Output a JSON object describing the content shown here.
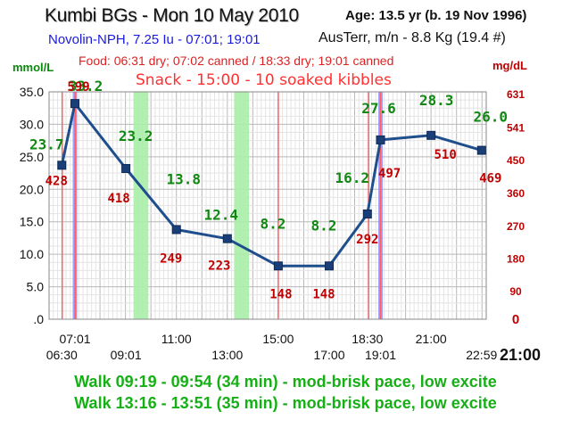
{
  "header": {
    "title": "Kumbi BGs - Mon 10 May 2010",
    "age": "Age: 13.5  yr (b. 19 Nov 1996)",
    "insulin": "Novolin-NPH, 7.25 Iu - 07:01; 19:01",
    "weight": "AusTerr, m/n - 8.8 Kg (19.4 #)",
    "food": "Food: 06:31 dry; 07:02 canned / 18:33 dry; 19:01 canned",
    "snack": "Snack - 15:00 - 10 soaked kibbles"
  },
  "footer": {
    "extra_time_label": "21:00",
    "walks": [
      "Walk 09:19 - 09:54 (34 min) - mod-brisk pace, low excite",
      "Walk 13:16 - 13:51 (35 min) - mod-brisk pace, low excite"
    ]
  },
  "chart_data": {
    "type": "line",
    "ylabel_left": "mmol/L",
    "ylabel_right": "mg/dL",
    "ylim": [
      0,
      35
    ],
    "x_range": [
      "06:00",
      "23:10"
    ],
    "y_ticks": [
      ".0",
      "5.0",
      "10.0",
      "15.0",
      "20.0",
      "25.0",
      "30.0",
      "35.0"
    ],
    "right_ticks": [
      {
        "label": "0",
        "y": 0
      },
      {
        "label": "90",
        "y": 4.4
      },
      {
        "label": "180",
        "y": 9.4
      },
      {
        "label": "270",
        "y": 14.4
      },
      {
        "label": "360",
        "y": 19.5
      },
      {
        "label": "450",
        "y": 24.6
      },
      {
        "label": "541",
        "y": 29.6
      },
      {
        "label": "631",
        "y": 34.7
      }
    ],
    "x_ticks": [
      {
        "time": "06:30",
        "label": "06:30",
        "row": 2
      },
      {
        "time": "07:01",
        "label": "07:01",
        "row": 1
      },
      {
        "time": "09:01",
        "label": "09:01",
        "row": 2
      },
      {
        "time": "11:00",
        "label": "11:00",
        "row": 1
      },
      {
        "time": "13:00",
        "label": "13:00",
        "row": 2
      },
      {
        "time": "15:00",
        "label": "15:00",
        "row": 1
      },
      {
        "time": "17:00",
        "label": "17:00",
        "row": 2
      },
      {
        "time": "18:30",
        "label": "18:30",
        "row": 1
      },
      {
        "time": "19:01",
        "label": "19:01",
        "row": 2
      },
      {
        "time": "21:00",
        "label": "21:00",
        "row": 1
      },
      {
        "time": "22:59",
        "label": "22:59",
        "row": 2
      }
    ],
    "series": [
      {
        "points": [
          {
            "time": "06:30",
            "mmol": 23.7,
            "mmol_label": "23.7",
            "mgdl": 428,
            "mgdl_label": "428"
          },
          {
            "time": "07:01",
            "mmol": 33.2,
            "mmol_label": "33.2",
            "mgdl": 599,
            "mgdl_label": "599"
          },
          {
            "time": "09:01",
            "mmol": 23.2,
            "mmol_label": "23.2",
            "mgdl": 418,
            "mgdl_label": "418"
          },
          {
            "time": "11:00",
            "mmol": 13.8,
            "mmol_label": "13.8",
            "mgdl": 249,
            "mgdl_label": "249"
          },
          {
            "time": "13:00",
            "mmol": 12.4,
            "mmol_label": "12.4",
            "mgdl": 223,
            "mgdl_label": "223"
          },
          {
            "time": "15:00",
            "mmol": 8.2,
            "mmol_label": "8.2",
            "mgdl": 148,
            "mgdl_label": "148"
          },
          {
            "time": "17:00",
            "mmol": 8.2,
            "mmol_label": "8.2",
            "mgdl": 148,
            "mgdl_label": "148"
          },
          {
            "time": "18:30",
            "mmol": 16.2,
            "mmol_label": "16.2",
            "mgdl": 292,
            "mgdl_label": "292"
          },
          {
            "time": "19:01",
            "mmol": 27.6,
            "mmol_label": "27.6",
            "mgdl": 497,
            "mgdl_label": "497"
          },
          {
            "time": "21:00",
            "mmol": 28.3,
            "mmol_label": "28.3",
            "mgdl": 510,
            "mgdl_label": "510"
          },
          {
            "time": "22:59",
            "mmol": 26.0,
            "mmol_label": "26.0",
            "mgdl": 469,
            "mgdl_label": "469"
          }
        ]
      }
    ],
    "events": {
      "insulin": [
        "07:01",
        "19:01"
      ],
      "food": [
        "06:31",
        "07:02",
        "18:33",
        "19:01"
      ],
      "snack": [
        "15:00"
      ],
      "walks": [
        {
          "start": "09:19",
          "end": "09:54"
        },
        {
          "start": "13:16",
          "end": "13:51"
        }
      ]
    },
    "colors": {
      "line": "#1f4e8c",
      "marker": "#1a3f78",
      "mmol_label": "#118811",
      "mgdl_label": "#c00000",
      "insulin": "#8a8aff",
      "food": "#ff6060",
      "walk": "#aaeeaa",
      "grid_major": "#b8b8b8",
      "grid_minor": "#e4e4e4"
    }
  }
}
